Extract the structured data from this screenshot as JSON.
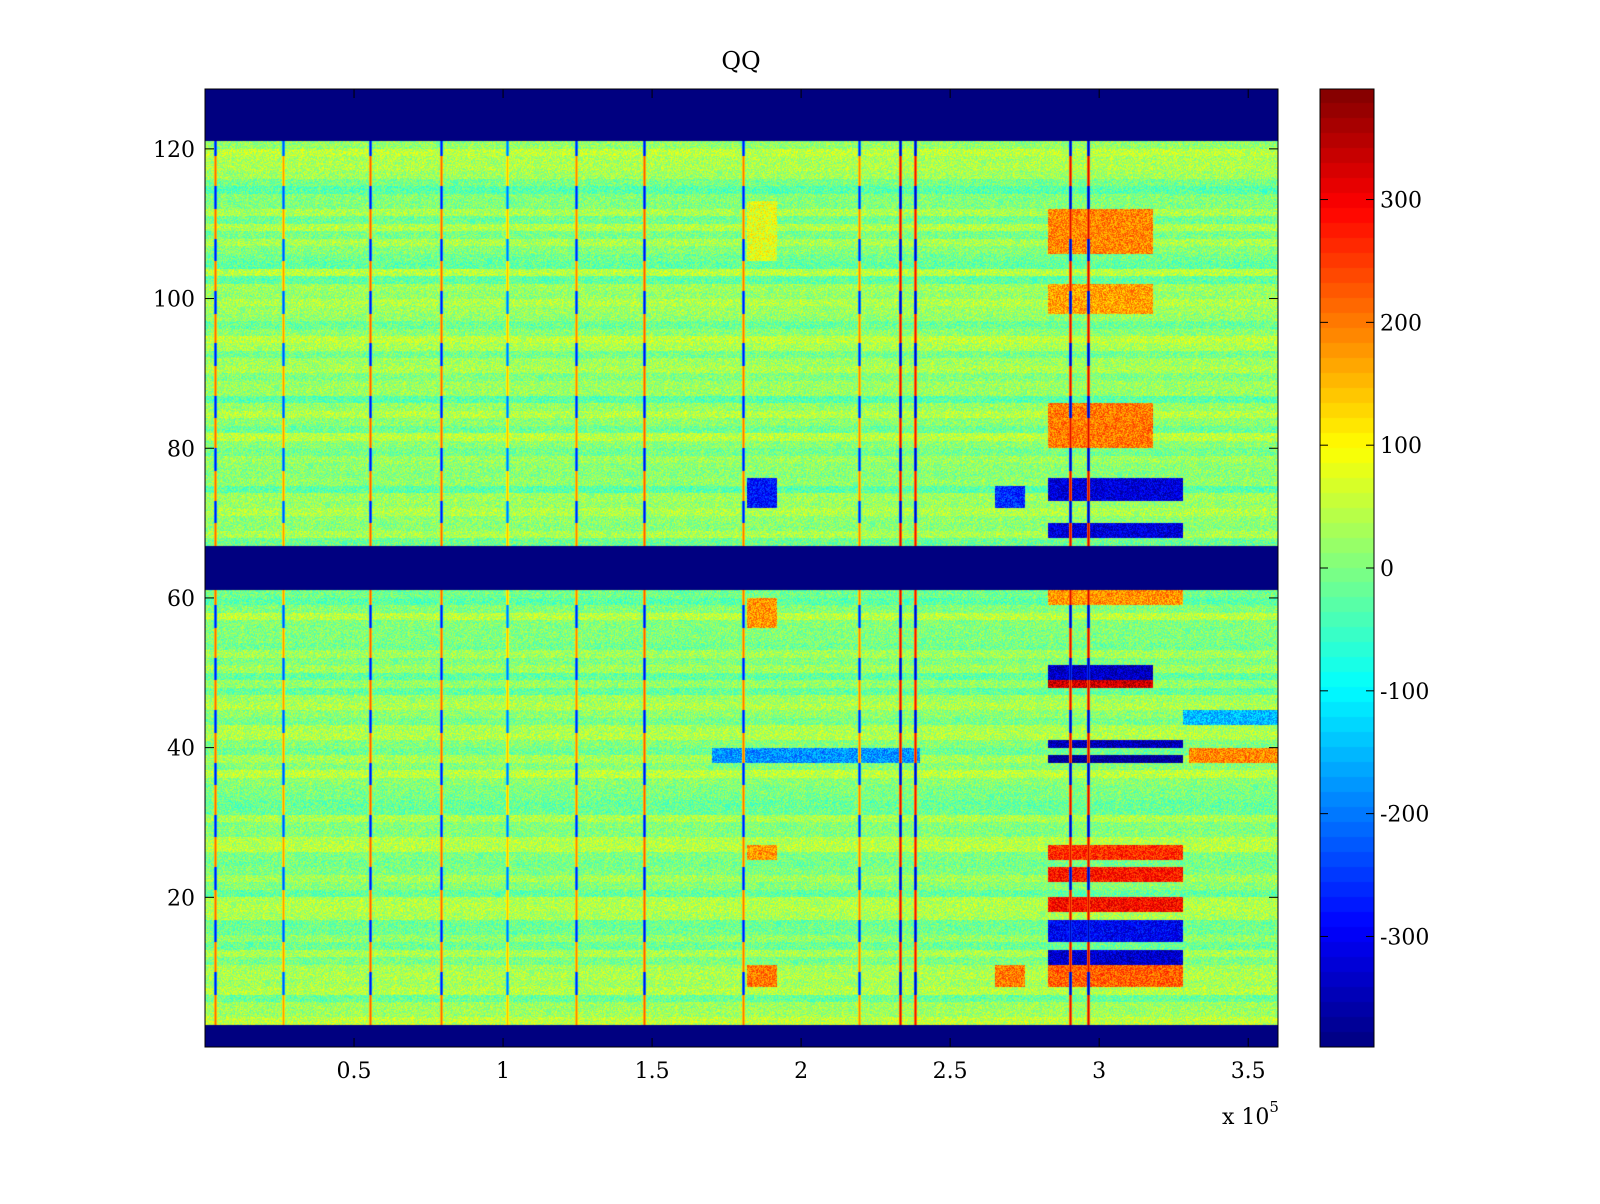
{
  "chart_data": {
    "type": "heatmap",
    "title": "QQ",
    "xlabel": "",
    "ylabel": "",
    "x_multiplier_label": "x 10",
    "x_multiplier_exponent": "5",
    "xlim": [
      0,
      3.6
    ],
    "ylim": [
      0,
      128
    ],
    "x_ticks": [
      0.5,
      1,
      1.5,
      2,
      2.5,
      3,
      3.5
    ],
    "x_tick_labels": [
      "0.5",
      "1",
      "1.5",
      "2",
      "2.5",
      "3",
      "3.5"
    ],
    "y_ticks": [
      20,
      40,
      60,
      80,
      100,
      120
    ],
    "y_tick_labels": [
      "20",
      "40",
      "60",
      "80",
      "100",
      "120"
    ],
    "colormap": "jet",
    "clim": [
      -390,
      390
    ],
    "colorbar_ticks": [
      300,
      200,
      100,
      0,
      -100,
      -200,
      -300
    ],
    "colorbar_tick_labels": [
      "300",
      "200",
      "100",
      "0",
      "-100",
      "-200",
      "-300"
    ],
    "background_value": 10,
    "dead_row_bands": [
      [
        0,
        3
      ],
      [
        61,
        67
      ],
      [
        121,
        128
      ]
    ],
    "dead_value": -390,
    "spike_columns": [
      {
        "x": 0.03,
        "pos": 220,
        "neg": -290
      },
      {
        "x": 0.26,
        "pos": 180,
        "neg": -240
      },
      {
        "x": 0.55,
        "pos": 230,
        "neg": -300
      },
      {
        "x": 0.79,
        "pos": 220,
        "neg": -290
      },
      {
        "x": 1.01,
        "pos": 150,
        "neg": -210
      },
      {
        "x": 1.24,
        "pos": 200,
        "neg": -280
      },
      {
        "x": 1.47,
        "pos": 230,
        "neg": -310
      },
      {
        "x": 1.8,
        "pos": 210,
        "neg": -290
      },
      {
        "x": 2.19,
        "pos": 200,
        "neg": -280
      },
      {
        "x": 2.33,
        "pos": 320,
        "neg": -360
      },
      {
        "x": 2.38,
        "pos": 300,
        "neg": -350
      },
      {
        "x": 2.9,
        "pos": 320,
        "neg": -360
      },
      {
        "x": 2.96,
        "pos": 330,
        "neg": -370
      }
    ],
    "patches": [
      {
        "x": [
          1.82,
          1.92
        ],
        "y": [
          105,
          113
        ],
        "value": 80
      },
      {
        "x": [
          1.82,
          1.92
        ],
        "y": [
          72,
          76
        ],
        "value": -280
      },
      {
        "x": [
          1.82,
          1.92
        ],
        "y": [
          56,
          60
        ],
        "value": 180
      },
      {
        "x": [
          1.82,
          1.92
        ],
        "y": [
          38,
          40
        ],
        "value": 220
      },
      {
        "x": [
          1.82,
          1.92
        ],
        "y": [
          25,
          27
        ],
        "value": 180
      },
      {
        "x": [
          1.82,
          1.92
        ],
        "y": [
          8,
          11
        ],
        "value": 200
      },
      {
        "x": [
          2.83,
          3.18
        ],
        "y": [
          106,
          112
        ],
        "value": 190
      },
      {
        "x": [
          2.83,
          3.18
        ],
        "y": [
          98,
          102
        ],
        "value": 170
      },
      {
        "x": [
          2.83,
          3.18
        ],
        "y": [
          80,
          86
        ],
        "value": 200
      },
      {
        "x": [
          2.83,
          3.28
        ],
        "y": [
          73,
          76
        ],
        "value": -320
      },
      {
        "x": [
          2.83,
          3.28
        ],
        "y": [
          68,
          70
        ],
        "value": -320
      },
      {
        "x": [
          2.83,
          3.28
        ],
        "y": [
          59,
          61
        ],
        "value": 180
      },
      {
        "x": [
          2.83,
          3.18
        ],
        "y": [
          49,
          51
        ],
        "value": -340
      },
      {
        "x": [
          2.83,
          3.18
        ],
        "y": [
          48,
          49
        ],
        "value": 330
      },
      {
        "x": [
          3.28,
          3.6
        ],
        "y": [
          43,
          45
        ],
        "value": -150
      },
      {
        "x": [
          2.83,
          3.28
        ],
        "y": [
          40,
          41
        ],
        "value": -350
      },
      {
        "x": [
          2.83,
          3.28
        ],
        "y": [
          38,
          39
        ],
        "value": -380
      },
      {
        "x": [
          1.7,
          2.4
        ],
        "y": [
          38,
          40
        ],
        "value": -180
      },
      {
        "x": [
          3.3,
          3.6
        ],
        "y": [
          38,
          40
        ],
        "value": 190
      },
      {
        "x": [
          2.83,
          3.28
        ],
        "y": [
          25,
          27
        ],
        "value": 260
      },
      {
        "x": [
          2.83,
          3.28
        ],
        "y": [
          22,
          24
        ],
        "value": 280
      },
      {
        "x": [
          2.83,
          3.28
        ],
        "y": [
          18,
          20
        ],
        "value": 290
      },
      {
        "x": [
          2.83,
          3.28
        ],
        "y": [
          14,
          17
        ],
        "value": -300
      },
      {
        "x": [
          2.83,
          3.28
        ],
        "y": [
          11,
          13
        ],
        "value": -330
      },
      {
        "x": [
          2.83,
          3.28
        ],
        "y": [
          8,
          11
        ],
        "value": 220
      },
      {
        "x": [
          2.65,
          2.75
        ],
        "y": [
          72,
          75
        ],
        "value": -260
      },
      {
        "x": [
          2.65,
          2.75
        ],
        "y": [
          8,
          11
        ],
        "value": 200
      }
    ]
  }
}
